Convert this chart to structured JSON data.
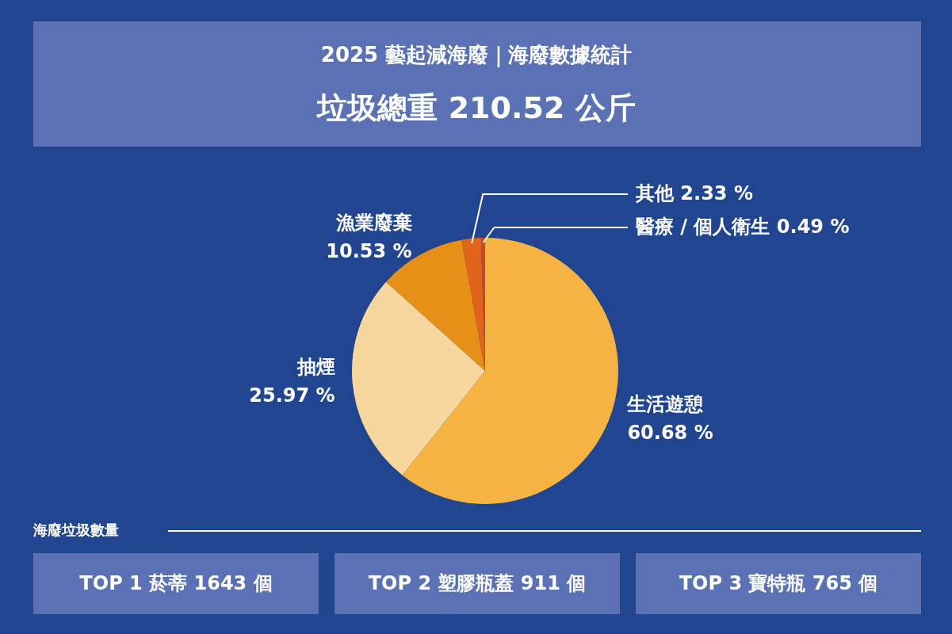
{
  "chart_data": {
    "type": "pie",
    "title": "2025 藝起減海廢｜海廢數據統計",
    "subtitle": "垃圾總重 210.52 公斤",
    "categories": [
      "生活遊憩",
      "抽煙",
      "漁業廢棄",
      "其他",
      "醫療 / 個人衛生"
    ],
    "values": [
      60.68,
      25.97,
      10.53,
      2.33,
      0.49
    ],
    "colors": [
      "#f5b342",
      "#f8d79e",
      "#e59118",
      "#e0651a",
      "#c9462b"
    ],
    "value_labels": [
      "60.68 %",
      "25.97 %",
      "10.53 %",
      "2.33 %",
      "0.49 %"
    ],
    "annotations": [
      "海廢垃圾數量",
      "TOP 1  菸蒂 1643 個",
      "TOP 2  塑膠瓶蓋 911 個",
      "TOP 3  寶特瓶 765 個"
    ]
  }
}
